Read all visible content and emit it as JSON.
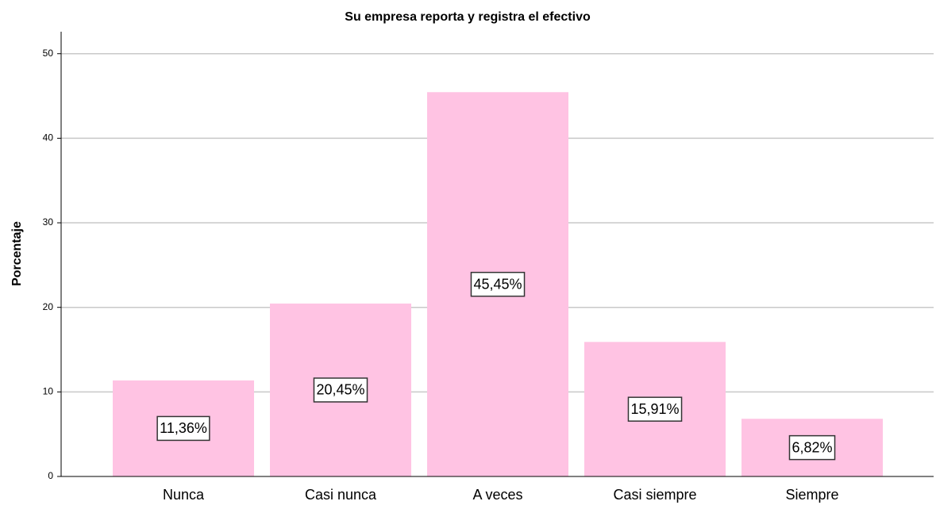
{
  "chart_data": {
    "type": "bar",
    "title": "Su empresa reporta y registra el efectivo",
    "y_label": "Porcentaje",
    "categories": [
      "Nunca",
      "Casi nunca",
      "A veces",
      "Casi siempre",
      "Siempre"
    ],
    "values": [
      11.36,
      20.45,
      45.45,
      15.91,
      6.82
    ],
    "value_labels": [
      "11,36%",
      "20,45%",
      "45,45%",
      "15,91%",
      "6,82%"
    ],
    "color": "#ffc3e3",
    "ylim": [
      0,
      52.6
    ],
    "yticks": [
      0,
      10,
      20,
      30,
      40,
      50
    ],
    "grid": true
  }
}
